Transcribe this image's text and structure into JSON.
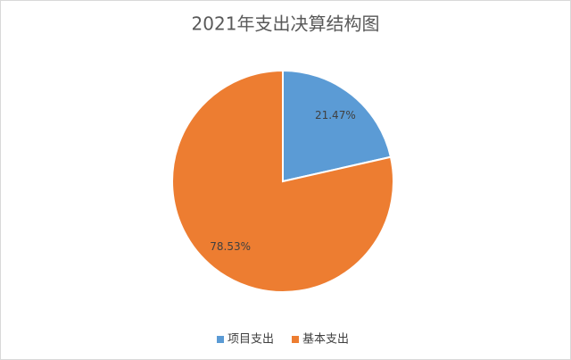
{
  "chart_data": {
    "type": "pie",
    "title": "2021年支出决算结构图",
    "categories": [
      "项目支出",
      "基本支出"
    ],
    "values": [
      21.47,
      78.53
    ],
    "value_labels": [
      "21.47%",
      "78.53%"
    ],
    "colors": [
      "#5b9bd5",
      "#ed7d31"
    ],
    "legend": "bottom"
  }
}
